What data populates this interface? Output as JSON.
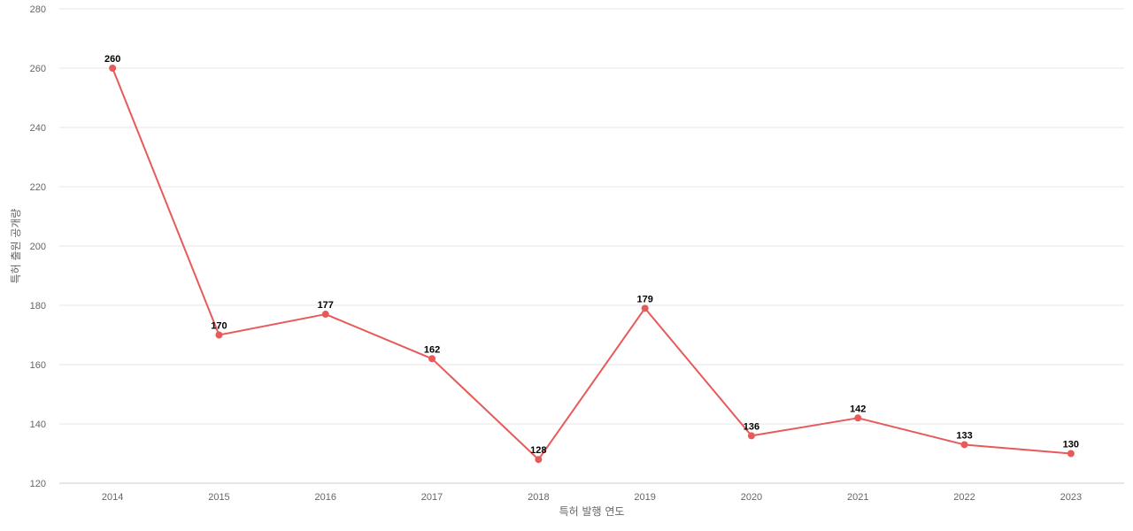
{
  "chart_data": {
    "type": "line",
    "title": "",
    "xlabel": "특허 발행 연도",
    "ylabel": "특허 출원 공개량",
    "categories": [
      "2014",
      "2015",
      "2016",
      "2017",
      "2018",
      "2019",
      "2020",
      "2021",
      "2022",
      "2023"
    ],
    "series": [
      {
        "values": [
          260,
          170,
          177,
          162,
          128,
          179,
          136,
          142,
          133,
          130
        ],
        "color": "#e85a5a"
      }
    ],
    "ylim": [
      120,
      280
    ],
    "yticks": [
      120,
      140,
      160,
      180,
      200,
      220,
      240,
      260,
      280
    ],
    "grid": true,
    "legend": "none",
    "data_labels": true
  }
}
